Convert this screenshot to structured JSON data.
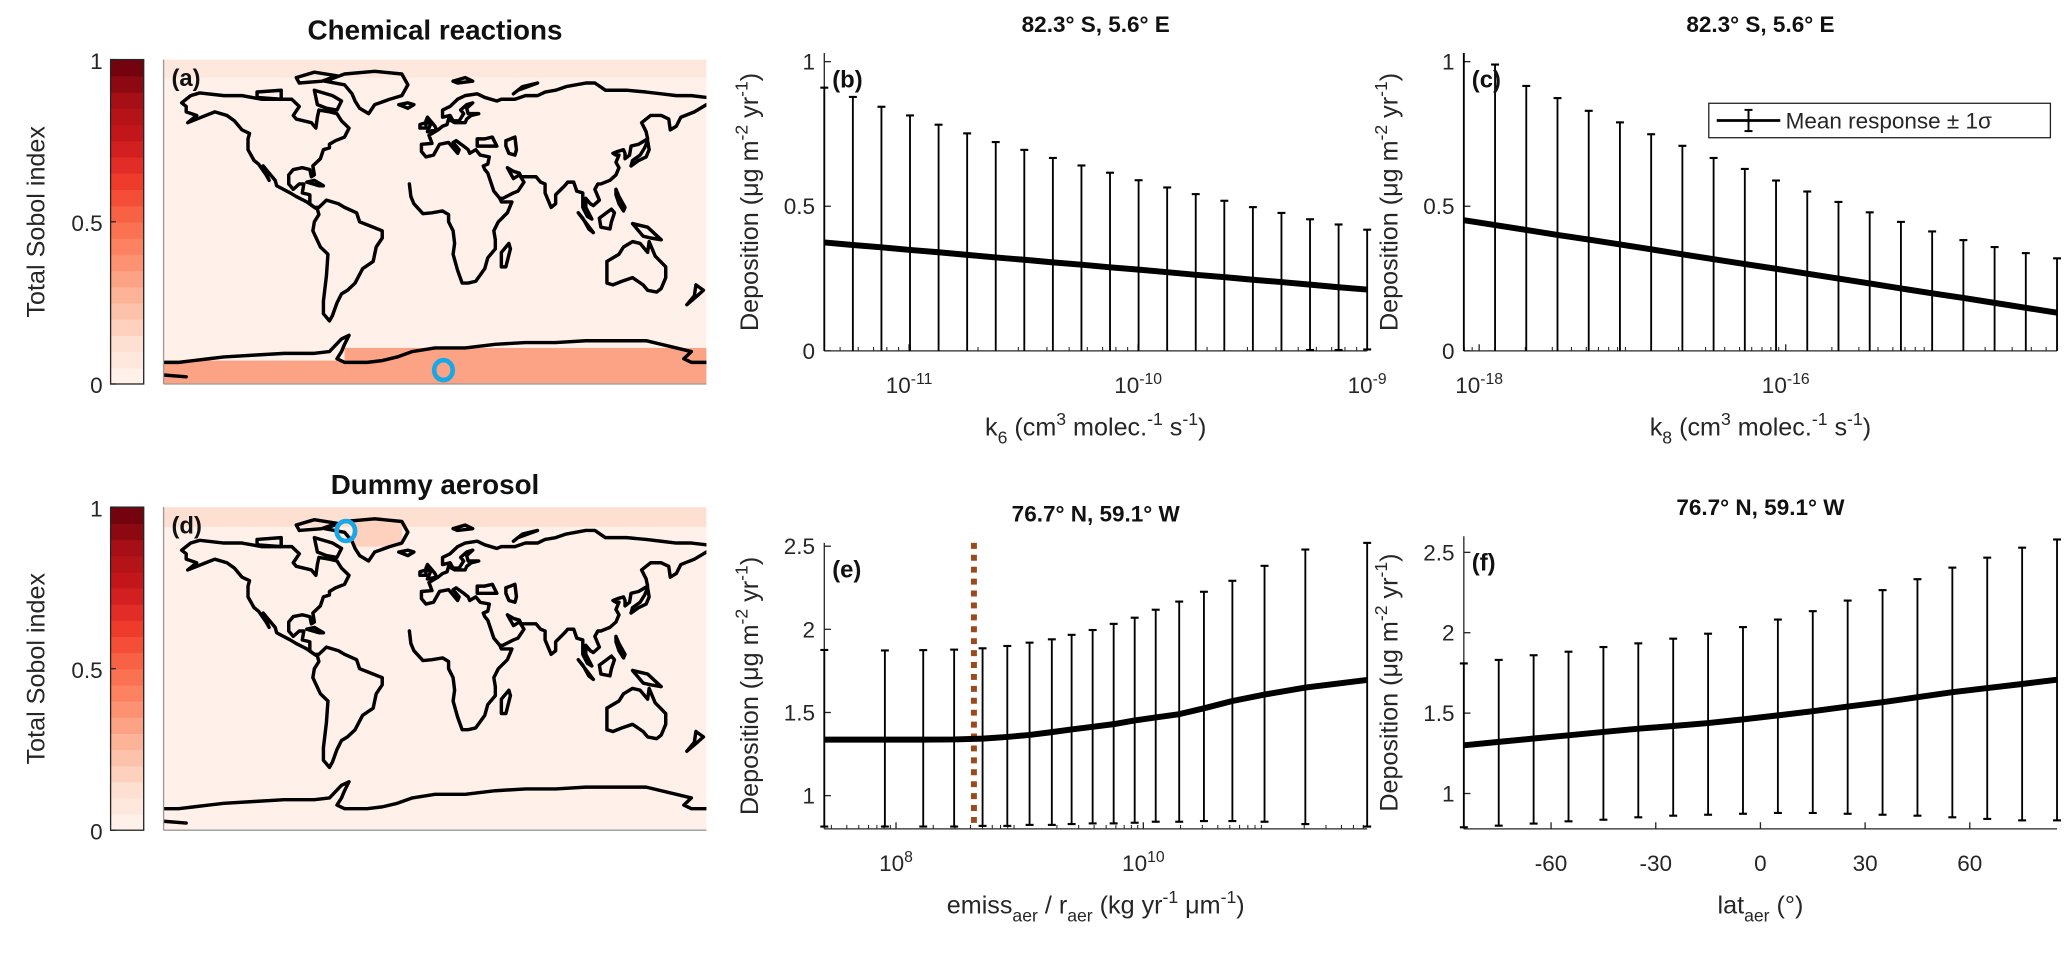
{
  "figure": {
    "colormap": [
      "#fff5f0",
      "#fee0d2",
      "#fcbba1",
      "#fc9272",
      "#fb6a4a",
      "#ef3b2c",
      "#cb181d",
      "#a50f15",
      "#67000d"
    ],
    "colormap_levels": 20,
    "marker_color": "#1aa7e6",
    "reference_line_color": "#9a4a1c",
    "maps": [
      {
        "id": "a",
        "title": "Chemical reactions",
        "label": "(a)",
        "colorbar_label": "Total Sobol index",
        "colorbar_ticks": [
          "0",
          "0.5",
          "1"
        ],
        "background_value": 0.02,
        "regions": [
          {
            "lat": [
              80,
              90
            ],
            "lon": [
              -180,
              180
            ],
            "value": 0.08
          },
          {
            "lat": [
              -90,
              -77
            ],
            "lon": [
              -180,
              -60
            ],
            "value": 0.3
          },
          {
            "lat": [
              -90,
              -70
            ],
            "lon": [
              -60,
              180
            ],
            "value": 0.3
          }
        ],
        "marker": {
          "lat": -82.3,
          "lon": 5.6
        }
      },
      {
        "id": "d",
        "title": "Dummy aerosol",
        "label": "(d)",
        "colorbar_label": "Total Sobol index",
        "colorbar_ticks": [
          "0",
          "0.5",
          "1"
        ],
        "background_value": 0.02,
        "regions": [
          {
            "lat": [
              79,
              90
            ],
            "lon": [
              -180,
              180
            ],
            "value": 0.1
          },
          {
            "lat": [
              68,
              83
            ],
            "lon": [
              -55,
              -22
            ],
            "value": 0.18
          }
        ],
        "marker": {
          "lat": 76.7,
          "lon": -59.1
        }
      }
    ],
    "legend": {
      "label": "Mean response ± 1σ"
    }
  },
  "chart_data": [
    {
      "id": "b",
      "type": "line",
      "title": "82.3° S, 5.6° E",
      "label": "(b)",
      "xscale": "log",
      "xlabel": "k_{6} (cm^{3} molec.^{-1} s^{-1})",
      "ylabel": "Deposition (μg m^{-2} yr^{-1})",
      "xlim_log10": [
        -11.37,
        -9.0
      ],
      "ylim": [
        0,
        1.03
      ],
      "xticks_log10": [
        -11,
        -10,
        -9
      ],
      "xtick_labels": [
        "10^{-11}",
        "10^{-10}",
        "10^{-9}"
      ],
      "yticks": [
        0,
        0.5,
        1
      ],
      "ytick_labels": [
        "0",
        "0.5",
        "1"
      ],
      "x_log10_range": [
        -11.37,
        -9.0
      ],
      "n": 20,
      "mean": [
        0.375,
        0.366,
        0.358,
        0.349,
        0.341,
        0.332,
        0.323,
        0.315,
        0.306,
        0.298,
        0.289,
        0.281,
        0.272,
        0.263,
        0.255,
        0.246,
        0.238,
        0.229,
        0.22,
        0.212
      ],
      "upper": [
        0.91,
        0.878,
        0.844,
        0.814,
        0.782,
        0.752,
        0.722,
        0.695,
        0.667,
        0.641,
        0.616,
        0.59,
        0.565,
        0.542,
        0.519,
        0.497,
        0.477,
        0.455,
        0.437,
        0.419
      ]
    },
    {
      "id": "c",
      "type": "line",
      "title": "82.3° S, 5.6° E",
      "label": "(c)",
      "xscale": "log",
      "xlabel": "k_{8} (cm^{3} molec.^{-1} s^{-1})",
      "ylabel": "Deposition (μg m^{-2} yr^{-1})",
      "xlim_log10": [
        -18.1,
        -14.23
      ],
      "ylim": [
        0,
        1.03
      ],
      "xticks_log10": [
        -18,
        -16
      ],
      "xtick_labels": [
        "10^{-18}",
        "10^{-16}"
      ],
      "yticks": [
        0,
        0.5,
        1
      ],
      "ytick_labels": [
        "0",
        "0.5",
        "1"
      ],
      "x_log10_range": [
        -18.1,
        -14.23
      ],
      "n": 20,
      "mean": [
        0.452,
        0.435,
        0.418,
        0.401,
        0.385,
        0.368,
        0.351,
        0.334,
        0.317,
        0.3,
        0.284,
        0.267,
        0.25,
        0.233,
        0.216,
        0.199,
        0.183,
        0.166,
        0.149,
        0.132
      ],
      "upper": [
        1.05,
        0.99,
        0.916,
        0.874,
        0.83,
        0.79,
        0.749,
        0.709,
        0.667,
        0.629,
        0.589,
        0.551,
        0.515,
        0.479,
        0.446,
        0.413,
        0.383,
        0.359,
        0.338,
        0.32
      ],
      "legend": "top-right"
    },
    {
      "id": "e",
      "type": "line",
      "title": "76.7° N, 59.1° W",
      "label": "(e)",
      "xscale": "log",
      "xlabel": "emiss_{aer} / r_{aer} (kg yr^{-1} μm^{-1})",
      "ylabel": "Deposition (μg m^{-2} yr^{-1})",
      "xlim_log10": [
        7.42,
        11.81
      ],
      "ylim": [
        0.8,
        2.52
      ],
      "xticks_log10": [
        8,
        10
      ],
      "xtick_labels": [
        "10^{8}",
        "10^{10}"
      ],
      "yticks": [
        1,
        1.5,
        2,
        2.5
      ],
      "ytick_labels": [
        "1",
        "1.5",
        "2",
        "2.5"
      ],
      "x_log10": [
        7.42,
        7.91,
        8.22,
        8.47,
        8.7,
        8.9,
        9.08,
        9.26,
        9.42,
        9.59,
        9.76,
        9.93,
        10.1,
        10.29,
        10.49,
        10.72,
        10.98,
        11.31,
        11.81
      ],
      "mean": [
        1.337,
        1.337,
        1.337,
        1.338,
        1.343,
        1.353,
        1.365,
        1.382,
        1.398,
        1.414,
        1.43,
        1.452,
        1.47,
        1.49,
        1.525,
        1.569,
        1.608,
        1.65,
        1.696
      ],
      "upper": [
        1.876,
        1.873,
        1.875,
        1.878,
        1.886,
        1.9,
        1.92,
        1.94,
        1.967,
        1.996,
        2.033,
        2.07,
        2.118,
        2.167,
        2.226,
        2.292,
        2.382,
        2.48,
        2.52
      ],
      "lower": [
        0.814,
        0.814,
        0.814,
        0.814,
        0.818,
        0.818,
        0.824,
        0.824,
        0.829,
        0.833,
        0.833,
        0.837,
        0.843,
        0.843,
        0.847,
        0.847,
        0.843,
        0.829,
        0.814
      ],
      "reference_x_log10": 8.63
    },
    {
      "id": "f",
      "type": "line",
      "title": "76.7° N, 59.1° W",
      "label": "(f)",
      "xscale": "linear",
      "xlabel": "lat_{aer} (°)",
      "ylabel": "Deposition (μg m^{-2} yr^{-1})",
      "xlim": [
        -85,
        85
      ],
      "ylim": [
        0.78,
        2.6
      ],
      "xticks": [
        -60,
        -30,
        0,
        30,
        60
      ],
      "xtick_labels": [
        "-60",
        "-30",
        "0",
        "30",
        "60"
      ],
      "yticks": [
        1,
        1.5,
        2,
        2.5
      ],
      "ytick_labels": [
        "1",
        "1.5",
        "2",
        "2.5"
      ],
      "x": [
        -85,
        -75,
        -65,
        -55,
        -45,
        -35,
        -25,
        -15,
        -5,
        5,
        15,
        25,
        35,
        45,
        55,
        65,
        75,
        85
      ],
      "mean": [
        1.3,
        1.321,
        1.342,
        1.362,
        1.383,
        1.403,
        1.42,
        1.438,
        1.461,
        1.486,
        1.512,
        1.541,
        1.568,
        1.599,
        1.63,
        1.656,
        1.681,
        1.708
      ],
      "upper": [
        1.809,
        1.831,
        1.86,
        1.882,
        1.911,
        1.934,
        1.963,
        1.994,
        2.035,
        2.082,
        2.134,
        2.2,
        2.265,
        2.333,
        2.405,
        2.467,
        2.529,
        2.58
      ],
      "lower": [
        0.79,
        0.8,
        0.813,
        0.827,
        0.837,
        0.852,
        0.862,
        0.868,
        0.874,
        0.879,
        0.879,
        0.874,
        0.868,
        0.862,
        0.852,
        0.842,
        0.833,
        0.833
      ]
    }
  ]
}
